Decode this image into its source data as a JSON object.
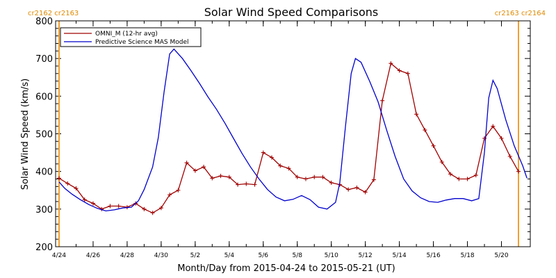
{
  "chart_data": {
    "type": "line",
    "title": "Solar Wind Speed Comparisons",
    "xlabel": "Month/Day from 2015-04-24 to 2015-05-21 (UT)",
    "ylabel": "Solar Wind Speed (km/s)",
    "xlim": [
      "2015-04-24",
      "2015-05-21"
    ],
    "ylim": [
      200,
      800
    ],
    "y_ticks": [
      200,
      300,
      400,
      500,
      600,
      700,
      800
    ],
    "x_tick_labels": [
      "4/24",
      "4/26",
      "4/28",
      "4/30",
      "5/2",
      "5/4",
      "5/6",
      "5/8",
      "5/10",
      "5/12",
      "5/14",
      "5/16",
      "5/18",
      "5/20"
    ],
    "x_tick_dates": [
      "2015-04-24",
      "2015-04-26",
      "2015-04-28",
      "2015-04-30",
      "2015-05-02",
      "2015-05-04",
      "2015-05-06",
      "2015-05-08",
      "2015-05-10",
      "2015-05-12",
      "2015-05-14",
      "2015-05-16",
      "2015-05-18",
      "2015-05-20"
    ],
    "x_tick_displayed": [
      "4/24",
      "4/26",
      "4/28",
      "4/30",
      "5/2",
      "5/4",
      "5/6",
      "5/8",
      "5/10",
      "5/12",
      "5/14",
      "5/16",
      "5/18",
      "5/20"
    ],
    "carrington_markers": [
      {
        "date": "2015-04-24",
        "label": "cr2162 cr2163",
        "side": "left"
      },
      {
        "date": "2015-05-21",
        "label": "cr2163 cr2164",
        "side": "right"
      }
    ],
    "legend_placement": "top-left",
    "series": [
      {
        "name": "OMNI_M (12-hr avg)",
        "color": "#a00000",
        "markers": "plus",
        "points": [
          [
            "2015-04-24 00:00",
            382
          ],
          [
            "2015-04-24 12:00",
            368
          ],
          [
            "2015-04-25 00:00",
            355
          ],
          [
            "2015-04-25 12:00",
            325
          ],
          [
            "2015-04-26 00:00",
            315
          ],
          [
            "2015-04-26 12:00",
            300
          ],
          [
            "2015-04-27 00:00",
            308
          ],
          [
            "2015-04-27 12:00",
            308
          ],
          [
            "2015-04-28 00:00",
            305
          ],
          [
            "2015-04-28 12:00",
            315
          ],
          [
            "2015-04-29 00:00",
            300
          ],
          [
            "2015-04-29 12:00",
            290
          ],
          [
            "2015-04-30 00:00",
            303
          ],
          [
            "2015-04-30 12:00",
            338
          ],
          [
            "2015-05-01 00:00",
            350
          ],
          [
            "2015-05-01 12:00",
            423
          ],
          [
            "2015-05-02 00:00",
            402
          ],
          [
            "2015-05-02 12:00",
            412
          ],
          [
            "2015-05-03 00:00",
            382
          ],
          [
            "2015-05-03 12:00",
            388
          ],
          [
            "2015-05-04 00:00",
            385
          ],
          [
            "2015-05-04 12:00",
            365
          ],
          [
            "2015-05-05 00:00",
            367
          ],
          [
            "2015-05-05 12:00",
            365
          ],
          [
            "2015-05-06 00:00",
            450
          ],
          [
            "2015-05-06 12:00",
            437
          ],
          [
            "2015-05-07 00:00",
            415
          ],
          [
            "2015-05-07 12:00",
            408
          ],
          [
            "2015-05-08 00:00",
            385
          ],
          [
            "2015-05-08 12:00",
            380
          ],
          [
            "2015-05-09 00:00",
            385
          ],
          [
            "2015-05-09 12:00",
            385
          ],
          [
            "2015-05-10 00:00",
            370
          ],
          [
            "2015-05-10 12:00",
            365
          ],
          [
            "2015-05-11 00:00",
            352
          ],
          [
            "2015-05-11 12:00",
            357
          ],
          [
            "2015-05-12 00:00",
            345
          ],
          [
            "2015-05-12 12:00",
            378
          ],
          [
            "2015-05-13 00:00",
            588
          ],
          [
            "2015-05-13 12:00",
            687
          ],
          [
            "2015-05-14 00:00",
            668
          ],
          [
            "2015-05-14 12:00",
            660
          ],
          [
            "2015-05-15 00:00",
            552
          ],
          [
            "2015-05-15 12:00",
            510
          ],
          [
            "2015-05-16 00:00",
            468
          ],
          [
            "2015-05-16 12:00",
            425
          ],
          [
            "2015-05-17 00:00",
            393
          ],
          [
            "2015-05-17 12:00",
            380
          ],
          [
            "2015-05-18 00:00",
            380
          ],
          [
            "2015-05-18 12:00",
            390
          ],
          [
            "2015-05-19 00:00",
            488
          ],
          [
            "2015-05-19 12:00",
            520
          ],
          [
            "2015-05-20 00:00",
            488
          ],
          [
            "2015-05-20 12:00",
            440
          ],
          [
            "2015-05-21 00:00",
            400
          ]
        ]
      },
      {
        "name": "Predictive Science MAS Model",
        "color": "#0000cc",
        "markers": "none",
        "points": [
          [
            "2015-04-24 00:00",
            372
          ],
          [
            "2015-04-24 08:00",
            355
          ],
          [
            "2015-04-24 18:00",
            340
          ],
          [
            "2015-04-25 06:00",
            325
          ],
          [
            "2015-04-25 18:00",
            312
          ],
          [
            "2015-04-26 06:00",
            302
          ],
          [
            "2015-04-26 18:00",
            295
          ],
          [
            "2015-04-27 06:00",
            298
          ],
          [
            "2015-04-27 18:00",
            303
          ],
          [
            "2015-04-28 06:00",
            305
          ],
          [
            "2015-04-28 16:00",
            322
          ],
          [
            "2015-04-29 00:00",
            352
          ],
          [
            "2015-04-29 12:00",
            412
          ],
          [
            "2015-04-29 20:00",
            490
          ],
          [
            "2015-04-30 04:00",
            610
          ],
          [
            "2015-04-30 12:00",
            712
          ],
          [
            "2015-04-30 18:00",
            725
          ],
          [
            "2015-05-01 06:00",
            700
          ],
          [
            "2015-05-01 18:00",
            668
          ],
          [
            "2015-05-02 06:00",
            634
          ],
          [
            "2015-05-02 18:00",
            598
          ],
          [
            "2015-05-03 06:00",
            565
          ],
          [
            "2015-05-03 18:00",
            528
          ],
          [
            "2015-05-04 06:00",
            488
          ],
          [
            "2015-05-04 18:00",
            448
          ],
          [
            "2015-05-05 06:00",
            412
          ],
          [
            "2015-05-05 18:00",
            380
          ],
          [
            "2015-05-06 06:00",
            352
          ],
          [
            "2015-05-06 18:00",
            332
          ],
          [
            "2015-05-07 06:00",
            322
          ],
          [
            "2015-05-07 18:00",
            326
          ],
          [
            "2015-05-08 06:00",
            336
          ],
          [
            "2015-05-08 18:00",
            325
          ],
          [
            "2015-05-09 06:00",
            305
          ],
          [
            "2015-05-09 18:00",
            300
          ],
          [
            "2015-05-10 06:00",
            318
          ],
          [
            "2015-05-10 12:00",
            370
          ],
          [
            "2015-05-10 20:00",
            520
          ],
          [
            "2015-05-11 04:00",
            660
          ],
          [
            "2015-05-11 10:00",
            700
          ],
          [
            "2015-05-11 18:00",
            690
          ],
          [
            "2015-05-12 06:00",
            640
          ],
          [
            "2015-05-12 18:00",
            585
          ],
          [
            "2015-05-13 06:00",
            510
          ],
          [
            "2015-05-13 18:00",
            440
          ],
          [
            "2015-05-14 06:00",
            380
          ],
          [
            "2015-05-14 18:00",
            348
          ],
          [
            "2015-05-15 06:00",
            330
          ],
          [
            "2015-05-15 18:00",
            320
          ],
          [
            "2015-05-16 06:00",
            318
          ],
          [
            "2015-05-16 18:00",
            324
          ],
          [
            "2015-05-17 06:00",
            328
          ],
          [
            "2015-05-17 18:00",
            328
          ],
          [
            "2015-05-18 06:00",
            322
          ],
          [
            "2015-05-18 16:00",
            328
          ],
          [
            "2015-05-19 00:00",
            450
          ],
          [
            "2015-05-19 06:00",
            595
          ],
          [
            "2015-05-19 12:00",
            642
          ],
          [
            "2015-05-19 18:00",
            620
          ],
          [
            "2015-05-20 06:00",
            538
          ],
          [
            "2015-05-20 18:00",
            468
          ],
          [
            "2015-05-21 06:00",
            415
          ],
          [
            "2015-05-21 12:00",
            382
          ]
        ]
      }
    ]
  }
}
